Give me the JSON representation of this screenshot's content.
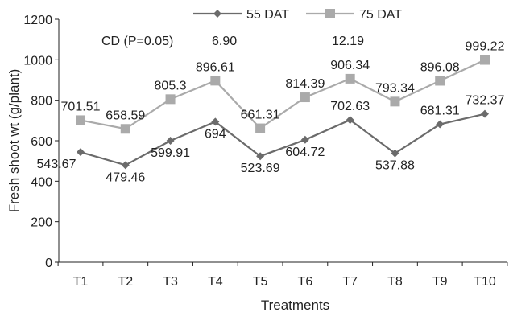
{
  "chart_data": {
    "type": "line",
    "title": "",
    "xlabel": "Treatments",
    "ylabel": "Fresh shoot wt (g/plant)",
    "ylim": [
      0,
      1200
    ],
    "yticks": [
      "0",
      "200",
      "400",
      "600",
      "800",
      "1000",
      "1200"
    ],
    "categories": [
      "T1",
      "T2",
      "T3",
      "T4",
      "T5",
      "T6",
      "T7",
      "T8",
      "T9",
      "T10"
    ],
    "grid": false,
    "legend_position": "top",
    "series": [
      {
        "name": "55 DAT",
        "color": "#6b6b6b",
        "marker": "diamond",
        "values": [
          543.67,
          479.46,
          599.91,
          694,
          523.69,
          604.72,
          702.63,
          537.88,
          681.31,
          732.37
        ],
        "labels": [
          "543.67",
          "479.46",
          "599.91",
          "694",
          "523.69",
          "604.72",
          "702.63",
          "537.88",
          "681.31",
          "732.37"
        ]
      },
      {
        "name": "75 DAT",
        "color": "#aaaaaa",
        "marker": "square",
        "values": [
          701.51,
          658.59,
          805.3,
          896.61,
          661.31,
          814.39,
          906.34,
          793.34,
          896.08,
          999.22
        ],
        "labels": [
          "701.51",
          "658.59",
          "805.3",
          "896.61",
          "661.31",
          "814.39",
          "906.34",
          "793.34",
          "896.08",
          "999.22"
        ]
      }
    ],
    "annotations": {
      "cd_label": "CD (P=0.05)",
      "cd_55": "6.90",
      "cd_75": "12.19"
    }
  }
}
